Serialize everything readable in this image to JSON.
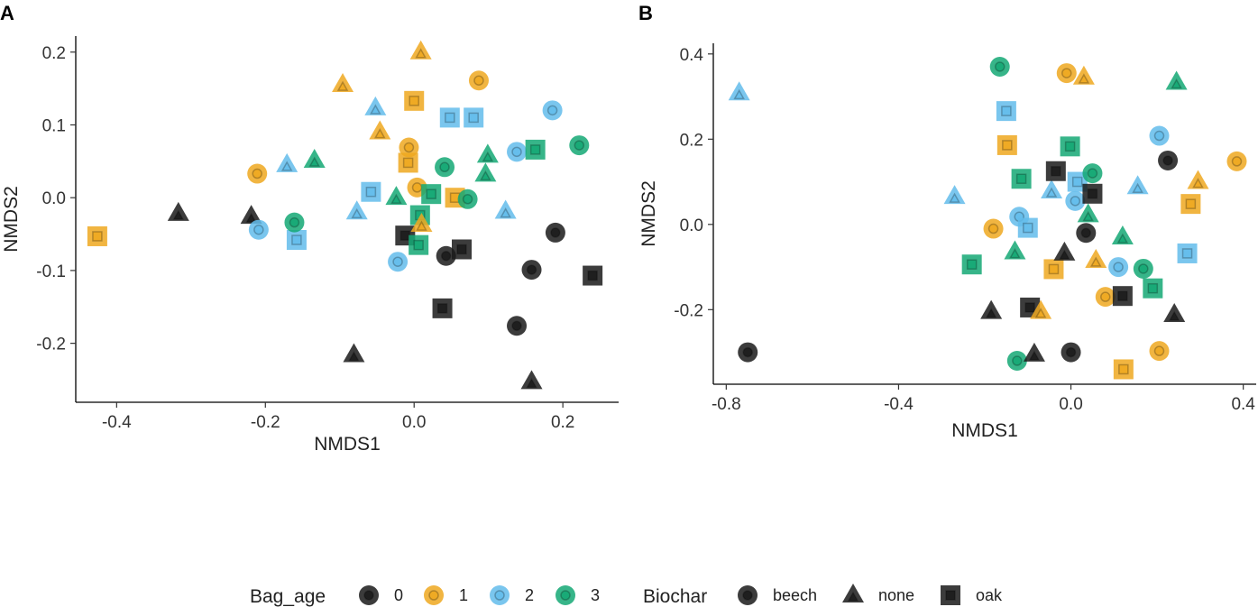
{
  "colors": {
    "0": "#1a1a1a",
    "1": "#EEA820",
    "2": "#63BCEB",
    "3": "#14A874"
  },
  "legend": {
    "bag_age_title": "Bag_age",
    "bag_age_levels": [
      "0",
      "1",
      "2",
      "3"
    ],
    "biochar_title": "Biochar",
    "biochar_levels": [
      "beech",
      "none",
      "oak"
    ]
  },
  "chart_data": [
    {
      "type": "scatter",
      "panel_label": "A",
      "xlabel": "NMDS1",
      "ylabel": "NMDS2",
      "xlim": [
        -0.455,
        0.275
      ],
      "ylim": [
        -0.281,
        0.222
      ],
      "xticks": [
        -0.4,
        -0.2,
        0.0,
        0.2
      ],
      "xtick_labels": [
        "-0.4",
        "-0.2",
        "0.0",
        "0.2"
      ],
      "yticks": [
        -0.2,
        -0.1,
        0.0,
        0.1,
        0.2
      ],
      "ytick_labels": [
        "-0.2",
        "-0.1",
        "0.0",
        "0.1",
        "0.2"
      ],
      "points": [
        {
          "x": -0.426,
          "y": -0.053,
          "age": "1",
          "biochar": "oak"
        },
        {
          "x": -0.317,
          "y": -0.022,
          "age": "0",
          "biochar": "none"
        },
        {
          "x": -0.219,
          "y": -0.026,
          "age": "0",
          "biochar": "none"
        },
        {
          "x": -0.209,
          "y": -0.044,
          "age": "2",
          "biochar": "beech"
        },
        {
          "x": -0.211,
          "y": 0.033,
          "age": "1",
          "biochar": "beech"
        },
        {
          "x": -0.171,
          "y": 0.045,
          "age": "2",
          "biochar": "none"
        },
        {
          "x": -0.134,
          "y": 0.051,
          "age": "3",
          "biochar": "none"
        },
        {
          "x": -0.158,
          "y": -0.058,
          "age": "2",
          "biochar": "oak"
        },
        {
          "x": -0.161,
          "y": -0.034,
          "age": "3",
          "biochar": "beech"
        },
        {
          "x": -0.096,
          "y": 0.155,
          "age": "1",
          "biochar": "none"
        },
        {
          "x": -0.081,
          "y": -0.216,
          "age": "0",
          "biochar": "none"
        },
        {
          "x": -0.077,
          "y": -0.02,
          "age": "2",
          "biochar": "none"
        },
        {
          "x": -0.052,
          "y": 0.123,
          "age": "2",
          "biochar": "none"
        },
        {
          "x": -0.046,
          "y": 0.09,
          "age": "1",
          "biochar": "none"
        },
        {
          "x": -0.058,
          "y": 0.008,
          "age": "2",
          "biochar": "oak"
        },
        {
          "x": -0.022,
          "y": -0.088,
          "age": "2",
          "biochar": "beech"
        },
        {
          "x": -0.024,
          "y": 0.0,
          "age": "3",
          "biochar": "none"
        },
        {
          "x": -0.012,
          "y": -0.052,
          "age": "0",
          "biochar": "oak"
        },
        {
          "x": -0.007,
          "y": 0.069,
          "age": "1",
          "biochar": "beech"
        },
        {
          "x": -0.008,
          "y": 0.048,
          "age": "1",
          "biochar": "oak"
        },
        {
          "x": 0.0,
          "y": 0.133,
          "age": "1",
          "biochar": "oak"
        },
        {
          "x": 0.009,
          "y": 0.2,
          "age": "1",
          "biochar": "none"
        },
        {
          "x": 0.004,
          "y": 0.014,
          "age": "1",
          "biochar": "beech"
        },
        {
          "x": 0.008,
          "y": -0.024,
          "age": "3",
          "biochar": "oak"
        },
        {
          "x": 0.006,
          "y": -0.065,
          "age": "3",
          "biochar": "oak"
        },
        {
          "x": 0.01,
          "y": -0.037,
          "age": "1",
          "biochar": "none"
        },
        {
          "x": 0.023,
          "y": 0.005,
          "age": "3",
          "biochar": "oak"
        },
        {
          "x": 0.038,
          "y": -0.152,
          "age": "0",
          "biochar": "oak"
        },
        {
          "x": 0.041,
          "y": 0.042,
          "age": "3",
          "biochar": "beech"
        },
        {
          "x": 0.043,
          "y": -0.08,
          "age": "0",
          "biochar": "beech"
        },
        {
          "x": 0.048,
          "y": 0.11,
          "age": "2",
          "biochar": "oak"
        },
        {
          "x": 0.055,
          "y": 0.0,
          "age": "1",
          "biochar": "oak"
        },
        {
          "x": 0.064,
          "y": -0.071,
          "age": "0",
          "biochar": "oak"
        },
        {
          "x": 0.072,
          "y": -0.002,
          "age": "3",
          "biochar": "beech"
        },
        {
          "x": 0.08,
          "y": 0.11,
          "age": "2",
          "biochar": "oak"
        },
        {
          "x": 0.087,
          "y": 0.161,
          "age": "1",
          "biochar": "beech"
        },
        {
          "x": 0.096,
          "y": 0.032,
          "age": "3",
          "biochar": "none"
        },
        {
          "x": 0.099,
          "y": 0.058,
          "age": "3",
          "biochar": "none"
        },
        {
          "x": 0.123,
          "y": -0.019,
          "age": "2",
          "biochar": "none"
        },
        {
          "x": 0.138,
          "y": 0.063,
          "age": "2",
          "biochar": "beech"
        },
        {
          "x": 0.138,
          "y": -0.176,
          "age": "0",
          "biochar": "beech"
        },
        {
          "x": 0.158,
          "y": -0.099,
          "age": "0",
          "biochar": "beech"
        },
        {
          "x": 0.158,
          "y": -0.253,
          "age": "0",
          "biochar": "none"
        },
        {
          "x": 0.163,
          "y": 0.066,
          "age": "3",
          "biochar": "oak"
        },
        {
          "x": 0.19,
          "y": -0.048,
          "age": "0",
          "biochar": "beech"
        },
        {
          "x": 0.186,
          "y": 0.12,
          "age": "2",
          "biochar": "beech"
        },
        {
          "x": 0.222,
          "y": 0.072,
          "age": "3",
          "biochar": "beech"
        },
        {
          "x": 0.24,
          "y": -0.107,
          "age": "0",
          "biochar": "oak"
        }
      ]
    },
    {
      "type": "scatter",
      "panel_label": "B",
      "xlabel": "NMDS1",
      "ylabel": "NMDS2",
      "xlim": [
        -0.83,
        0.43
      ],
      "ylim": [
        -0.375,
        0.425
      ],
      "xticks": [
        -0.8,
        -0.4,
        0.0,
        0.4
      ],
      "xtick_labels": [
        "-0.8",
        "-0.4",
        "0.0",
        "0.4"
      ],
      "yticks": [
        -0.2,
        0.0,
        0.2,
        0.4
      ],
      "ytick_labels": [
        "-0.2",
        "0.0",
        "0.2",
        "0.4"
      ],
      "points": [
        {
          "x": -0.77,
          "y": 0.308,
          "age": "2",
          "biochar": "none"
        },
        {
          "x": -0.75,
          "y": -0.3,
          "age": "0",
          "biochar": "beech"
        },
        {
          "x": -0.27,
          "y": 0.065,
          "age": "2",
          "biochar": "none"
        },
        {
          "x": -0.23,
          "y": -0.094,
          "age": "3",
          "biochar": "oak"
        },
        {
          "x": -0.185,
          "y": -0.205,
          "age": "0",
          "biochar": "none"
        },
        {
          "x": -0.18,
          "y": -0.01,
          "age": "1",
          "biochar": "beech"
        },
        {
          "x": -0.165,
          "y": 0.37,
          "age": "3",
          "biochar": "beech"
        },
        {
          "x": -0.15,
          "y": 0.266,
          "age": "2",
          "biochar": "oak"
        },
        {
          "x": -0.148,
          "y": 0.186,
          "age": "1",
          "biochar": "oak"
        },
        {
          "x": -0.13,
          "y": -0.065,
          "age": "3",
          "biochar": "none"
        },
        {
          "x": -0.125,
          "y": -0.32,
          "age": "3",
          "biochar": "beech"
        },
        {
          "x": -0.12,
          "y": 0.018,
          "age": "2",
          "biochar": "beech"
        },
        {
          "x": -0.115,
          "y": 0.107,
          "age": "3",
          "biochar": "oak"
        },
        {
          "x": -0.1,
          "y": -0.008,
          "age": "2",
          "biochar": "oak"
        },
        {
          "x": -0.095,
          "y": -0.195,
          "age": "0",
          "biochar": "oak"
        },
        {
          "x": -0.085,
          "y": -0.305,
          "age": "0",
          "biochar": "none"
        },
        {
          "x": -0.07,
          "y": -0.205,
          "age": "1",
          "biochar": "none"
        },
        {
          "x": -0.045,
          "y": 0.078,
          "age": "2",
          "biochar": "none"
        },
        {
          "x": -0.04,
          "y": -0.105,
          "age": "1",
          "biochar": "oak"
        },
        {
          "x": -0.035,
          "y": 0.125,
          "age": "0",
          "biochar": "oak"
        },
        {
          "x": -0.015,
          "y": -0.068,
          "age": "0",
          "biochar": "none"
        },
        {
          "x": -0.01,
          "y": 0.355,
          "age": "1",
          "biochar": "beech"
        },
        {
          "x": -0.002,
          "y": 0.183,
          "age": "3",
          "biochar": "oak"
        },
        {
          "x": 0.0,
          "y": -0.3,
          "age": "0",
          "biochar": "beech"
        },
        {
          "x": 0.01,
          "y": 0.055,
          "age": "2",
          "biochar": "beech"
        },
        {
          "x": 0.015,
          "y": 0.1,
          "age": "2",
          "biochar": "oak"
        },
        {
          "x": 0.03,
          "y": 0.345,
          "age": "1",
          "biochar": "none"
        },
        {
          "x": 0.035,
          "y": -0.02,
          "age": "0",
          "biochar": "beech"
        },
        {
          "x": 0.04,
          "y": 0.022,
          "age": "3",
          "biochar": "none"
        },
        {
          "x": 0.05,
          "y": 0.072,
          "age": "0",
          "biochar": "oak"
        },
        {
          "x": 0.05,
          "y": 0.12,
          "age": "3",
          "biochar": "beech"
        },
        {
          "x": 0.058,
          "y": -0.085,
          "age": "1",
          "biochar": "none"
        },
        {
          "x": 0.08,
          "y": -0.17,
          "age": "1",
          "biochar": "beech"
        },
        {
          "x": 0.11,
          "y": -0.1,
          "age": "2",
          "biochar": "beech"
        },
        {
          "x": 0.12,
          "y": -0.168,
          "age": "0",
          "biochar": "oak"
        },
        {
          "x": 0.12,
          "y": -0.03,
          "age": "3",
          "biochar": "none"
        },
        {
          "x": 0.122,
          "y": -0.34,
          "age": "1",
          "biochar": "oak"
        },
        {
          "x": 0.155,
          "y": 0.088,
          "age": "2",
          "biochar": "none"
        },
        {
          "x": 0.168,
          "y": -0.104,
          "age": "3",
          "biochar": "beech"
        },
        {
          "x": 0.19,
          "y": -0.15,
          "age": "3",
          "biochar": "oak"
        },
        {
          "x": 0.205,
          "y": 0.208,
          "age": "2",
          "biochar": "beech"
        },
        {
          "x": 0.205,
          "y": -0.297,
          "age": "1",
          "biochar": "beech"
        },
        {
          "x": 0.225,
          "y": 0.15,
          "age": "0",
          "biochar": "beech"
        },
        {
          "x": 0.24,
          "y": -0.212,
          "age": "0",
          "biochar": "none"
        },
        {
          "x": 0.245,
          "y": 0.333,
          "age": "3",
          "biochar": "none"
        },
        {
          "x": 0.27,
          "y": -0.068,
          "age": "2",
          "biochar": "oak"
        },
        {
          "x": 0.278,
          "y": 0.048,
          "age": "1",
          "biochar": "oak"
        },
        {
          "x": 0.295,
          "y": 0.1,
          "age": "1",
          "biochar": "none"
        },
        {
          "x": 0.385,
          "y": 0.148,
          "age": "1",
          "biochar": "beech"
        }
      ]
    }
  ]
}
